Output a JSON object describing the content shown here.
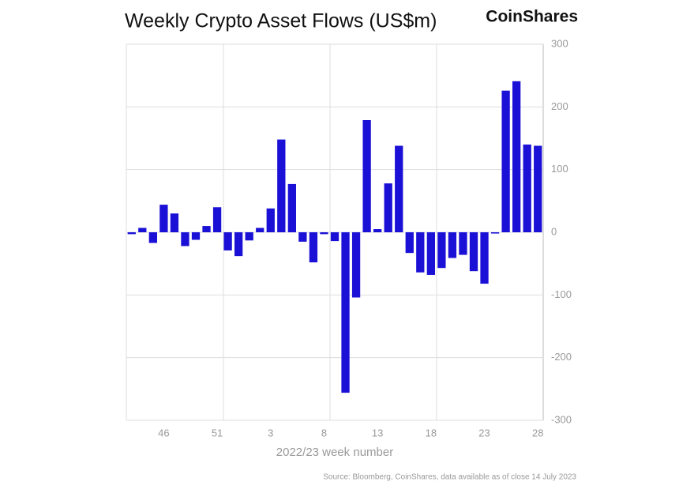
{
  "chart_data": {
    "type": "bar",
    "title": "Weekly Crypto Asset Flows (US$m)",
    "brand": "CoinShares",
    "xlabel": "2022/23 week number",
    "source": "Source: Bloomberg, CoinShares, data available as of close 14 July 2023",
    "categories": [
      null,
      null,
      null,
      "46",
      null,
      null,
      null,
      null,
      "51",
      null,
      null,
      null,
      null,
      "3",
      null,
      null,
      null,
      null,
      "8",
      null,
      null,
      null,
      null,
      "13",
      null,
      null,
      null,
      null,
      "18",
      null,
      null,
      null,
      null,
      "23",
      null,
      null,
      null,
      null,
      "28"
    ],
    "values": [
      -3,
      7,
      -17,
      44,
      30,
      -22,
      -12,
      10,
      40,
      -29,
      -38,
      -13,
      7,
      38,
      148,
      77,
      -15,
      -48,
      -3,
      -14,
      -256,
      -104,
      179,
      5,
      78,
      138,
      -33,
      -64,
      -68,
      -57,
      -41,
      -36,
      -62,
      -82,
      -2,
      226,
      241,
      140,
      138
    ],
    "color": "#1a10d6",
    "ylim": [
      -300,
      300
    ],
    "yticks": [
      300,
      200,
      100,
      0,
      -100,
      -200,
      -300
    ],
    "grid": true
  }
}
